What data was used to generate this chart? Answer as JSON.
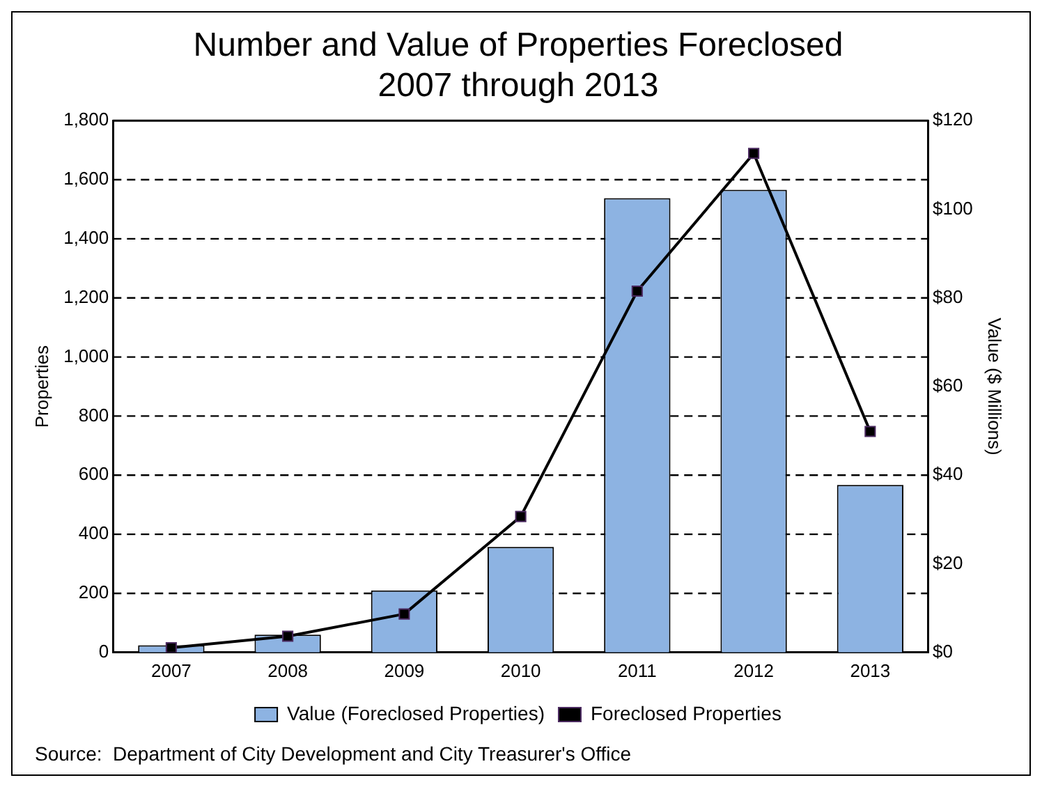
{
  "chart_data": {
    "type": "bar",
    "title": "Number and Value of Properties Foreclosed\n2007 through 2013",
    "categories": [
      "2007",
      "2008",
      "2009",
      "2010",
      "2011",
      "2012",
      "2013"
    ],
    "series": [
      {
        "name": "Value (Foreclosed Properties)",
        "axis": "y2",
        "color": "#8db3e2",
        "values": [
          1.6,
          4.0,
          14.0,
          23.8,
          102.5,
          104.4,
          37.8
        ]
      },
      {
        "name": "Foreclosed Properties",
        "type": "line",
        "axis": "y",
        "color": "#000000",
        "marker": "square",
        "values": [
          16,
          55,
          130,
          460,
          1223,
          1689,
          748
        ]
      }
    ],
    "ylabel": "Properties",
    "y2label": "Value ($ Millions)",
    "ylim": [
      0,
      1800
    ],
    "yticks": [
      0,
      200,
      400,
      600,
      800,
      {
        "value": 1000,
        "label": "1,000"
      },
      {
        "value": 1200,
        "label": "1,200"
      },
      {
        "value": 1400,
        "label": "1,400"
      },
      {
        "value": 1600,
        "label": "1,600"
      },
      {
        "value": 1800,
        "label": "1,800"
      }
    ],
    "y2lim": [
      0,
      120
    ],
    "y2ticks": [
      {
        "value": 0,
        "label": "$0"
      },
      {
        "value": 20,
        "label": "$20"
      },
      {
        "value": 40,
        "label": "$40"
      },
      {
        "value": 60,
        "label": "$60"
      },
      {
        "value": 80,
        "label": "$80"
      },
      {
        "value": 100,
        "label": "$100"
      },
      {
        "value": 120,
        "label": "$120"
      }
    ],
    "grid": "y",
    "legend": "bottom",
    "annotations": [
      "Source:  Department of City Development and City Treasurer's Office"
    ]
  }
}
